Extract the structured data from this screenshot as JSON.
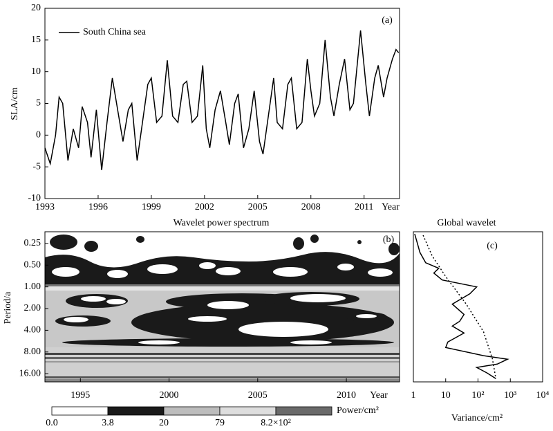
{
  "chart_data": [
    {
      "type": "line",
      "panel_label": "(a)",
      "ylabel": "SLA/cm",
      "x_label": "Year",
      "xlim": [
        1993,
        2013
      ],
      "xticks": [
        1993,
        1996,
        1999,
        2002,
        2005,
        2008,
        2011
      ],
      "ylim": [
        -10,
        20
      ],
      "yticks": [
        -10,
        -5,
        0,
        5,
        10,
        15,
        20
      ],
      "legend": "upper left",
      "series": [
        {
          "name": "South China sea",
          "color": "#000000",
          "x": [
            1993.0,
            1993.3,
            1993.6,
            1993.8,
            1994.0,
            1994.3,
            1994.6,
            1994.9,
            1995.1,
            1995.4,
            1995.6,
            1995.9,
            1996.2,
            1996.5,
            1996.8,
            1997.1,
            1997.4,
            1997.7,
            1997.9,
            1998.2,
            1998.5,
            1998.8,
            1999.0,
            1999.3,
            1999.6,
            1999.9,
            2000.2,
            2000.5,
            2000.8,
            2001.0,
            2001.3,
            2001.6,
            2001.9,
            2002.1,
            2002.3,
            2002.6,
            2002.9,
            2003.2,
            2003.4,
            2003.7,
            2003.9,
            2004.2,
            2004.5,
            2004.8,
            2005.1,
            2005.3,
            2005.6,
            2005.9,
            2006.1,
            2006.4,
            2006.7,
            2006.9,
            2007.2,
            2007.5,
            2007.8,
            2008.0,
            2008.2,
            2008.5,
            2008.8,
            2009.1,
            2009.3,
            2009.6,
            2009.9,
            2010.2,
            2010.4,
            2010.8,
            2011.1,
            2011.3,
            2011.6,
            2011.8,
            2012.1,
            2012.3,
            2012.6,
            2012.8,
            2012.95
          ],
          "values": [
            -2,
            -4.5,
            0,
            6,
            5,
            -4,
            1,
            -2,
            4.5,
            2,
            -3.5,
            4,
            -5.5,
            2,
            9,
            4,
            -1,
            4,
            5,
            -4,
            2,
            8,
            9,
            2,
            3,
            11.8,
            3,
            2,
            8,
            8.5,
            2,
            3,
            11,
            1,
            -2,
            4,
            7,
            2,
            -1.5,
            5,
            6.5,
            -2,
            1,
            7,
            -1,
            -3,
            3,
            9,
            2,
            1,
            8,
            9,
            1,
            2,
            12,
            7,
            3,
            5,
            15,
            6,
            3,
            8,
            12,
            4,
            5,
            16.5,
            8,
            3,
            9,
            11,
            6,
            9,
            12,
            13.5,
            13
          ]
        }
      ]
    },
    {
      "type": "contour",
      "title": "Wavelet power spectrum",
      "panel_label": "(b)",
      "ylabel": "Period/a",
      "x_label": "Year",
      "xlim": [
        1993,
        2013
      ],
      "xticks": [
        1995,
        2000,
        2005,
        2010
      ],
      "y_scale": "log",
      "y_inverted": true,
      "ylim": [
        0.172,
        20.8
      ],
      "yticks": [
        {
          "value": 0.25,
          "label": "0.25"
        },
        {
          "value": 0.5,
          "label": "0.50"
        },
        {
          "value": 1,
          "label": "1.00"
        },
        {
          "value": 2,
          "label": "2.00"
        },
        {
          "value": 4,
          "label": "4.00"
        },
        {
          "value": 8,
          "label": "8.00"
        },
        {
          "value": 16,
          "label": "16.00"
        }
      ],
      "levels": [
        {
          "value": 0,
          "label": "0.0"
        },
        3.8,
        20,
        79,
        {
          "value": 820,
          "label": "8.2×10²"
        }
      ],
      "level_colors": [
        "#ffffff",
        "#1a1a1a",
        "#bdbdbd",
        "#dedede",
        "#6a6a6a"
      ],
      "colorbar_label": "Power/cm²"
    },
    {
      "type": "line",
      "title": "Global wavelet",
      "panel_label": "(c)",
      "xlabel": "Variance/cm²",
      "x_scale": "log",
      "xlim": [
        1,
        10000
      ],
      "xticks": [
        1,
        10,
        {
          "value": 100,
          "label": "10²"
        },
        {
          "value": 1000,
          "label": "10³"
        },
        {
          "value": 10000,
          "label": "10⁴"
        }
      ],
      "y_scale": "log",
      "y_inverted": true,
      "ylim": [
        0.172,
        20.8
      ],
      "series": [
        {
          "color": "#000000",
          "style": "solid",
          "x": [
            1.1,
            1.3,
            1.6,
            2.4,
            6.1,
            4.3,
            7.8,
            91,
            56,
            16,
            37,
            27,
            16,
            37,
            11.6,
            10,
            148,
            822,
            396,
            91,
            189,
            357
          ],
          "y": [
            0.184,
            0.239,
            0.333,
            0.463,
            0.552,
            0.644,
            0.803,
            1.0,
            1.245,
            1.734,
            2.41,
            3.01,
            3.5,
            4.37,
            5.82,
            6.93,
            9.0,
            10.07,
            11.8,
            13.1,
            15.6,
            18.7
          ]
        },
        {
          "color": "#000000",
          "style": "dotted",
          "x": [
            2.0,
            3.8,
            10,
            43,
            148,
            280,
            357
          ],
          "y": [
            0.192,
            0.37,
            0.72,
            1.73,
            4.2,
            10,
            18.7
          ]
        }
      ]
    }
  ]
}
